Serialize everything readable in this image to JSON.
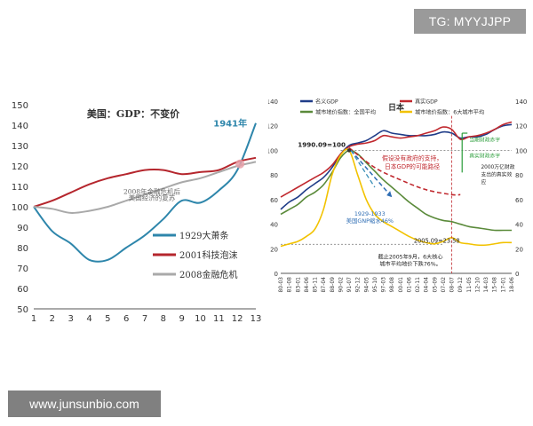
{
  "watermark_top": "TG: MYYJJPP",
  "watermark_bottom": "www.junsunbio.com",
  "colors": {
    "us_1929": "#2e86ab",
    "us_2001": "#b5262d",
    "us_2008": "#a9a9a9",
    "jp_nominal": "#1f3c88",
    "jp_real": "#c0282e",
    "jp_land_all": "#5a8a3a",
    "jp_land_six": "#f2c200",
    "accent_green": "#2a9d3a"
  },
  "chart_data": [
    {
      "type": "line",
      "title": "美国：GDP：不变价",
      "x": [
        1,
        2,
        3,
        4,
        5,
        6,
        7,
        8,
        9,
        10,
        11,
        12,
        13
      ],
      "ylim": [
        50,
        150
      ],
      "yticks": [
        50,
        60,
        70,
        80,
        90,
        100,
        110,
        120,
        130,
        140,
        150
      ],
      "grid": false,
      "legend_position": "bottom-right",
      "series": [
        {
          "name": "1929大萧条",
          "values": [
            100,
            88,
            82,
            74,
            74,
            80,
            86,
            94,
            103,
            102,
            108,
            118,
            141
          ],
          "color": "#2e86ab"
        },
        {
          "name": "2001科技泡沫",
          "values": [
            100,
            103,
            107,
            111,
            114,
            116,
            118,
            118,
            116,
            117,
            118,
            122,
            124
          ],
          "color": "#b5262d"
        },
        {
          "name": "2008金融危机",
          "values": [
            100,
            99,
            97,
            98,
            100,
            103,
            106,
            109,
            112,
            114,
            117,
            120,
            122
          ],
          "color": "#a9a9a9"
        }
      ],
      "annotations": [
        {
          "text": "1941年",
          "x": 12,
          "y": 141
        },
        {
          "text": "2008年金融危机后",
          "x": 7,
          "y": 108
        },
        {
          "text": "美国经济的复苏",
          "x": 7,
          "y": 105
        }
      ]
    },
    {
      "type": "line",
      "title": "日本",
      "x": [
        "80-03",
        "81-08",
        "83-01",
        "84-06",
        "85-11",
        "87-04",
        "88-09",
        "90-02",
        "91-07",
        "92-12",
        "94-05",
        "95-10",
        "97-03",
        "98-08",
        "00-01",
        "01-06",
        "02-11",
        "04-04",
        "05-09",
        "07-02",
        "08-07",
        "09-12",
        "11-05",
        "12-10",
        "14-03",
        "15-08",
        "17-01",
        "18-06"
      ],
      "ylim": [
        0,
        140
      ],
      "yticks": [
        0,
        20,
        40,
        60,
        80,
        100,
        120,
        140
      ],
      "y2lim": [
        0,
        140
      ],
      "grid": false,
      "legend_position": "top-left",
      "series": [
        {
          "name": "名义GDP",
          "values": [
            52,
            58,
            62,
            68,
            73,
            78,
            86,
            97,
            104,
            106,
            108,
            112,
            116,
            114,
            113,
            112,
            112,
            112,
            113,
            115,
            114,
            110,
            111,
            111,
            113,
            117,
            120,
            121
          ],
          "color": "#1f3c88"
        },
        {
          "name": "真实GDP",
          "values": [
            62,
            66,
            70,
            74,
            78,
            82,
            88,
            97,
            103,
            105,
            106,
            108,
            112,
            111,
            110,
            111,
            112,
            114,
            116,
            119,
            117,
            109,
            111,
            112,
            114,
            117,
            121,
            123
          ],
          "color": "#c0282e"
        },
        {
          "name": "城市地价指数：全国平均",
          "values": [
            48,
            52,
            56,
            62,
            66,
            72,
            82,
            94,
            100,
            97,
            90,
            83,
            76,
            70,
            64,
            58,
            53,
            48,
            45,
            43,
            42,
            40,
            38,
            37,
            36,
            35,
            35,
            35
          ],
          "color": "#5a8a3a"
        },
        {
          "name": "城市地价指数：6大城市平均",
          "values": [
            22,
            24,
            26,
            30,
            36,
            52,
            80,
            96,
            100,
            80,
            60,
            48,
            42,
            38,
            34,
            30,
            27,
            25,
            24,
            26,
            29,
            25,
            24,
            23,
            23,
            24,
            25,
            25
          ],
          "color": "#f2c200"
        }
      ],
      "annotations": [
        {
          "text": "1990.09=100",
          "x": "90-02",
          "y": 100
        },
        {
          "text": "假设没有政府的支持，",
          "x": "01-06",
          "y": 88
        },
        {
          "text": "日本GDP的可能路径",
          "x": "01-06",
          "y": 84
        },
        {
          "text": "1929-1933",
          "x": "94-05",
          "y": 48
        },
        {
          "text": "美国GNP缩水46%",
          "x": "94-05",
          "y": 44
        },
        {
          "text": "2005.09=23.58",
          "x": "05-09",
          "y": 26
        },
        {
          "text": "截止2005年9月，6大核心",
          "x": "01-06",
          "y": 13
        },
        {
          "text": "城市平均地价下跌76%。",
          "x": "01-06",
          "y": 9
        },
        {
          "text": "当期财政赤字",
          "x": "09-12",
          "y": 108
        },
        {
          "text": "真实财政赤字",
          "x": "09-12",
          "y": 95
        },
        {
          "text": "2000万亿财政",
          "x": "12-10",
          "y": 86
        },
        {
          "text": "支出的真实效",
          "x": "12-10",
          "y": 82
        },
        {
          "text": "应",
          "x": "12-10",
          "y": 78
        }
      ]
    }
  ]
}
